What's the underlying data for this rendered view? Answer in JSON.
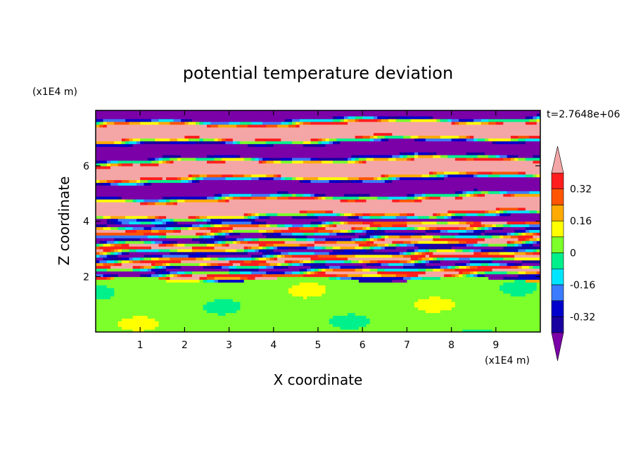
{
  "chart_data": {
    "type": "heatmap",
    "title": "potential temperature deviation",
    "xlabel": "X coordinate",
    "ylabel": "Z coordinate",
    "x_unit": "(x1E4 m)",
    "y_unit": "(x1E4 m)",
    "time_label": "t=2.7648e+06",
    "xlim": [
      0,
      10
    ],
    "ylim": [
      0,
      8
    ],
    "x_ticks": [
      1,
      2,
      3,
      4,
      5,
      6,
      7,
      8,
      9
    ],
    "y_ticks": [
      2,
      4,
      6
    ],
    "x_tick_labels": [
      "1",
      "2",
      "3",
      "4",
      "5",
      "6",
      "7",
      "8",
      "9"
    ],
    "y_tick_labels": [
      "2",
      "4",
      "6"
    ],
    "colorbar": {
      "levels": [
        -0.4,
        -0.32,
        -0.24,
        -0.16,
        -0.08,
        0,
        0.08,
        0.16,
        0.24,
        0.32,
        0.4
      ],
      "colors": [
        "#7B00A8",
        "#1A00A0",
        "#0000CC",
        "#3A7CFF",
        "#00E5FF",
        "#00F08C",
        "#7CFF2A",
        "#FFFF00",
        "#FFAA00",
        "#FF5500",
        "#FF1E1E",
        "#F4A6A6"
      ],
      "labels": [
        "0.32",
        "0.16",
        "0",
        "-0.16",
        "-0.32"
      ],
      "label_values": [
        0.32,
        0.16,
        0,
        -0.16,
        -0.32
      ],
      "extend": "both"
    },
    "regions": [
      {
        "z_range": [
          0,
          2
        ],
        "description_levels": [
          0,
          0.08
        ]
      },
      {
        "z_range": [
          2,
          4
        ],
        "description_levels": [
          -0.4,
          0.4
        ]
      },
      {
        "z_range": [
          4,
          8
        ],
        "description_levels": [
          -0.4,
          0.4
        ]
      }
    ]
  }
}
